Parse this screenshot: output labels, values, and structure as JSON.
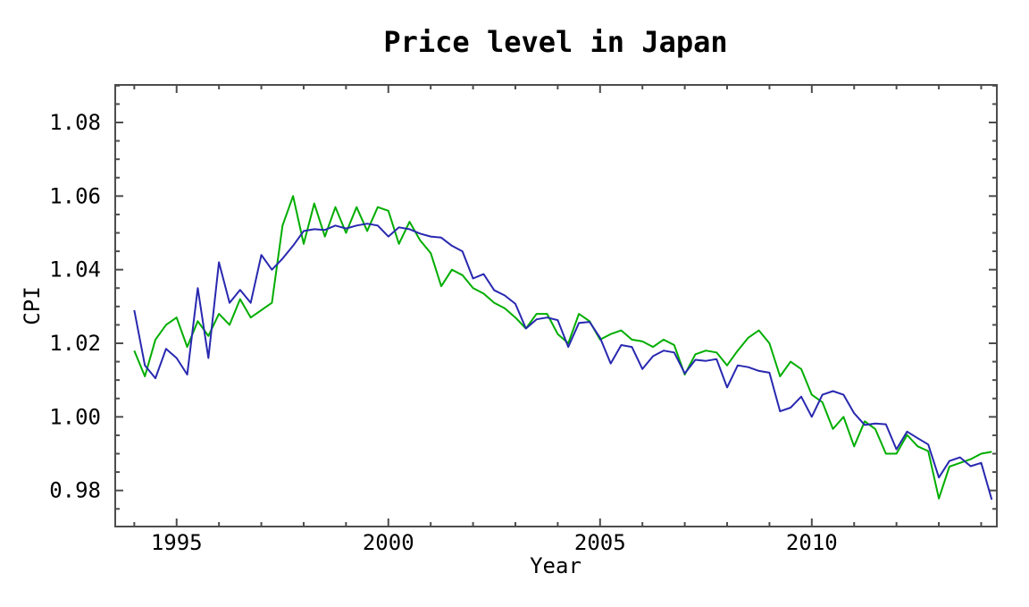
{
  "window": {
    "background": "#ffffff"
  },
  "chart_data": {
    "type": "line",
    "title": "Price level in Japan",
    "xlabel": "Year",
    "ylabel": "CPI",
    "grid": false,
    "legend_position": "none",
    "xlim": [
      1993.55,
      2014.37
    ],
    "ylim": [
      0.9702,
      1.0902
    ],
    "x_major_ticks": [
      1995,
      2000,
      2005,
      2010
    ],
    "x_major_tick_labels": [
      "1995",
      "2000",
      "2005",
      "2010"
    ],
    "x_minor_tick_step_years": 1,
    "y_major_ticks": [
      0.98,
      1.0,
      1.02,
      1.04,
      1.06,
      1.08
    ],
    "y_major_tick_labels": [
      "0.98",
      "1.00",
      "1.02",
      "1.04",
      "1.06",
      "1.08"
    ],
    "y_minor_tick_step": 0.005,
    "axis_color": "#4d4d4d",
    "text_color": "#000000",
    "series": [
      {
        "name": "series-line-green",
        "color": "#00ad00",
        "x_start": 1994.0,
        "x_step": 0.25,
        "values": [
          1.018,
          1.011,
          1.021,
          1.025,
          1.027,
          1.019,
          1.026,
          1.022,
          1.028,
          1.025,
          1.032,
          1.027,
          1.029,
          1.031,
          1.052,
          1.06,
          1.047,
          1.058,
          1.049,
          1.057,
          1.05,
          1.057,
          1.0505,
          1.057,
          1.056,
          1.047,
          1.053,
          1.048,
          1.0445,
          1.0355,
          1.04,
          1.0385,
          1.035,
          1.0335,
          1.031,
          1.0295,
          1.027,
          1.024,
          1.028,
          1.028,
          1.0225,
          1.02,
          1.028,
          1.026,
          1.021,
          1.0225,
          1.0235,
          1.021,
          1.0205,
          1.019,
          1.021,
          1.0195,
          1.0115,
          1.017,
          1.018,
          1.0175,
          1.014,
          1.018,
          1.0215,
          1.0235,
          1.02,
          1.011,
          1.015,
          1.013,
          1.006,
          1.004,
          0.9967,
          1.0,
          0.992,
          0.9988,
          0.9967,
          0.99,
          0.99,
          0.9951,
          0.992,
          0.9907,
          0.9778,
          0.9865,
          0.9875,
          0.9885,
          0.99,
          0.9905
        ]
      },
      {
        "name": "series-line-blue",
        "color": "#2828b0",
        "x_start": 1994.0,
        "x_step": 0.25,
        "values": [
          1.029,
          1.014,
          1.0105,
          1.0185,
          1.016,
          1.0115,
          1.035,
          1.016,
          1.042,
          1.031,
          1.0345,
          1.031,
          1.044,
          1.04,
          1.043,
          1.0465,
          1.0505,
          1.051,
          1.0508,
          1.052,
          1.0512,
          1.052,
          1.0525,
          1.052,
          1.049,
          1.0515,
          1.051,
          1.0498,
          1.049,
          1.0487,
          1.0465,
          1.045,
          1.0376,
          1.0388,
          1.0344,
          1.033,
          1.0307,
          1.024,
          1.0265,
          1.027,
          1.0263,
          1.019,
          1.0255,
          1.0258,
          1.0215,
          1.0145,
          1.0195,
          1.019,
          1.013,
          1.0165,
          1.018,
          1.0175,
          1.0118,
          1.0155,
          1.0152,
          1.0157,
          1.008,
          1.014,
          1.0135,
          1.0125,
          1.012,
          1.0015,
          1.0025,
          1.0055,
          1.0,
          1.006,
          1.007,
          1.006,
          1.001,
          0.9978,
          0.9982,
          0.998,
          0.9912,
          0.996,
          0.9942,
          0.9925,
          0.9835,
          0.988,
          0.989,
          0.9866,
          0.9875,
          0.9775
        ]
      }
    ]
  }
}
